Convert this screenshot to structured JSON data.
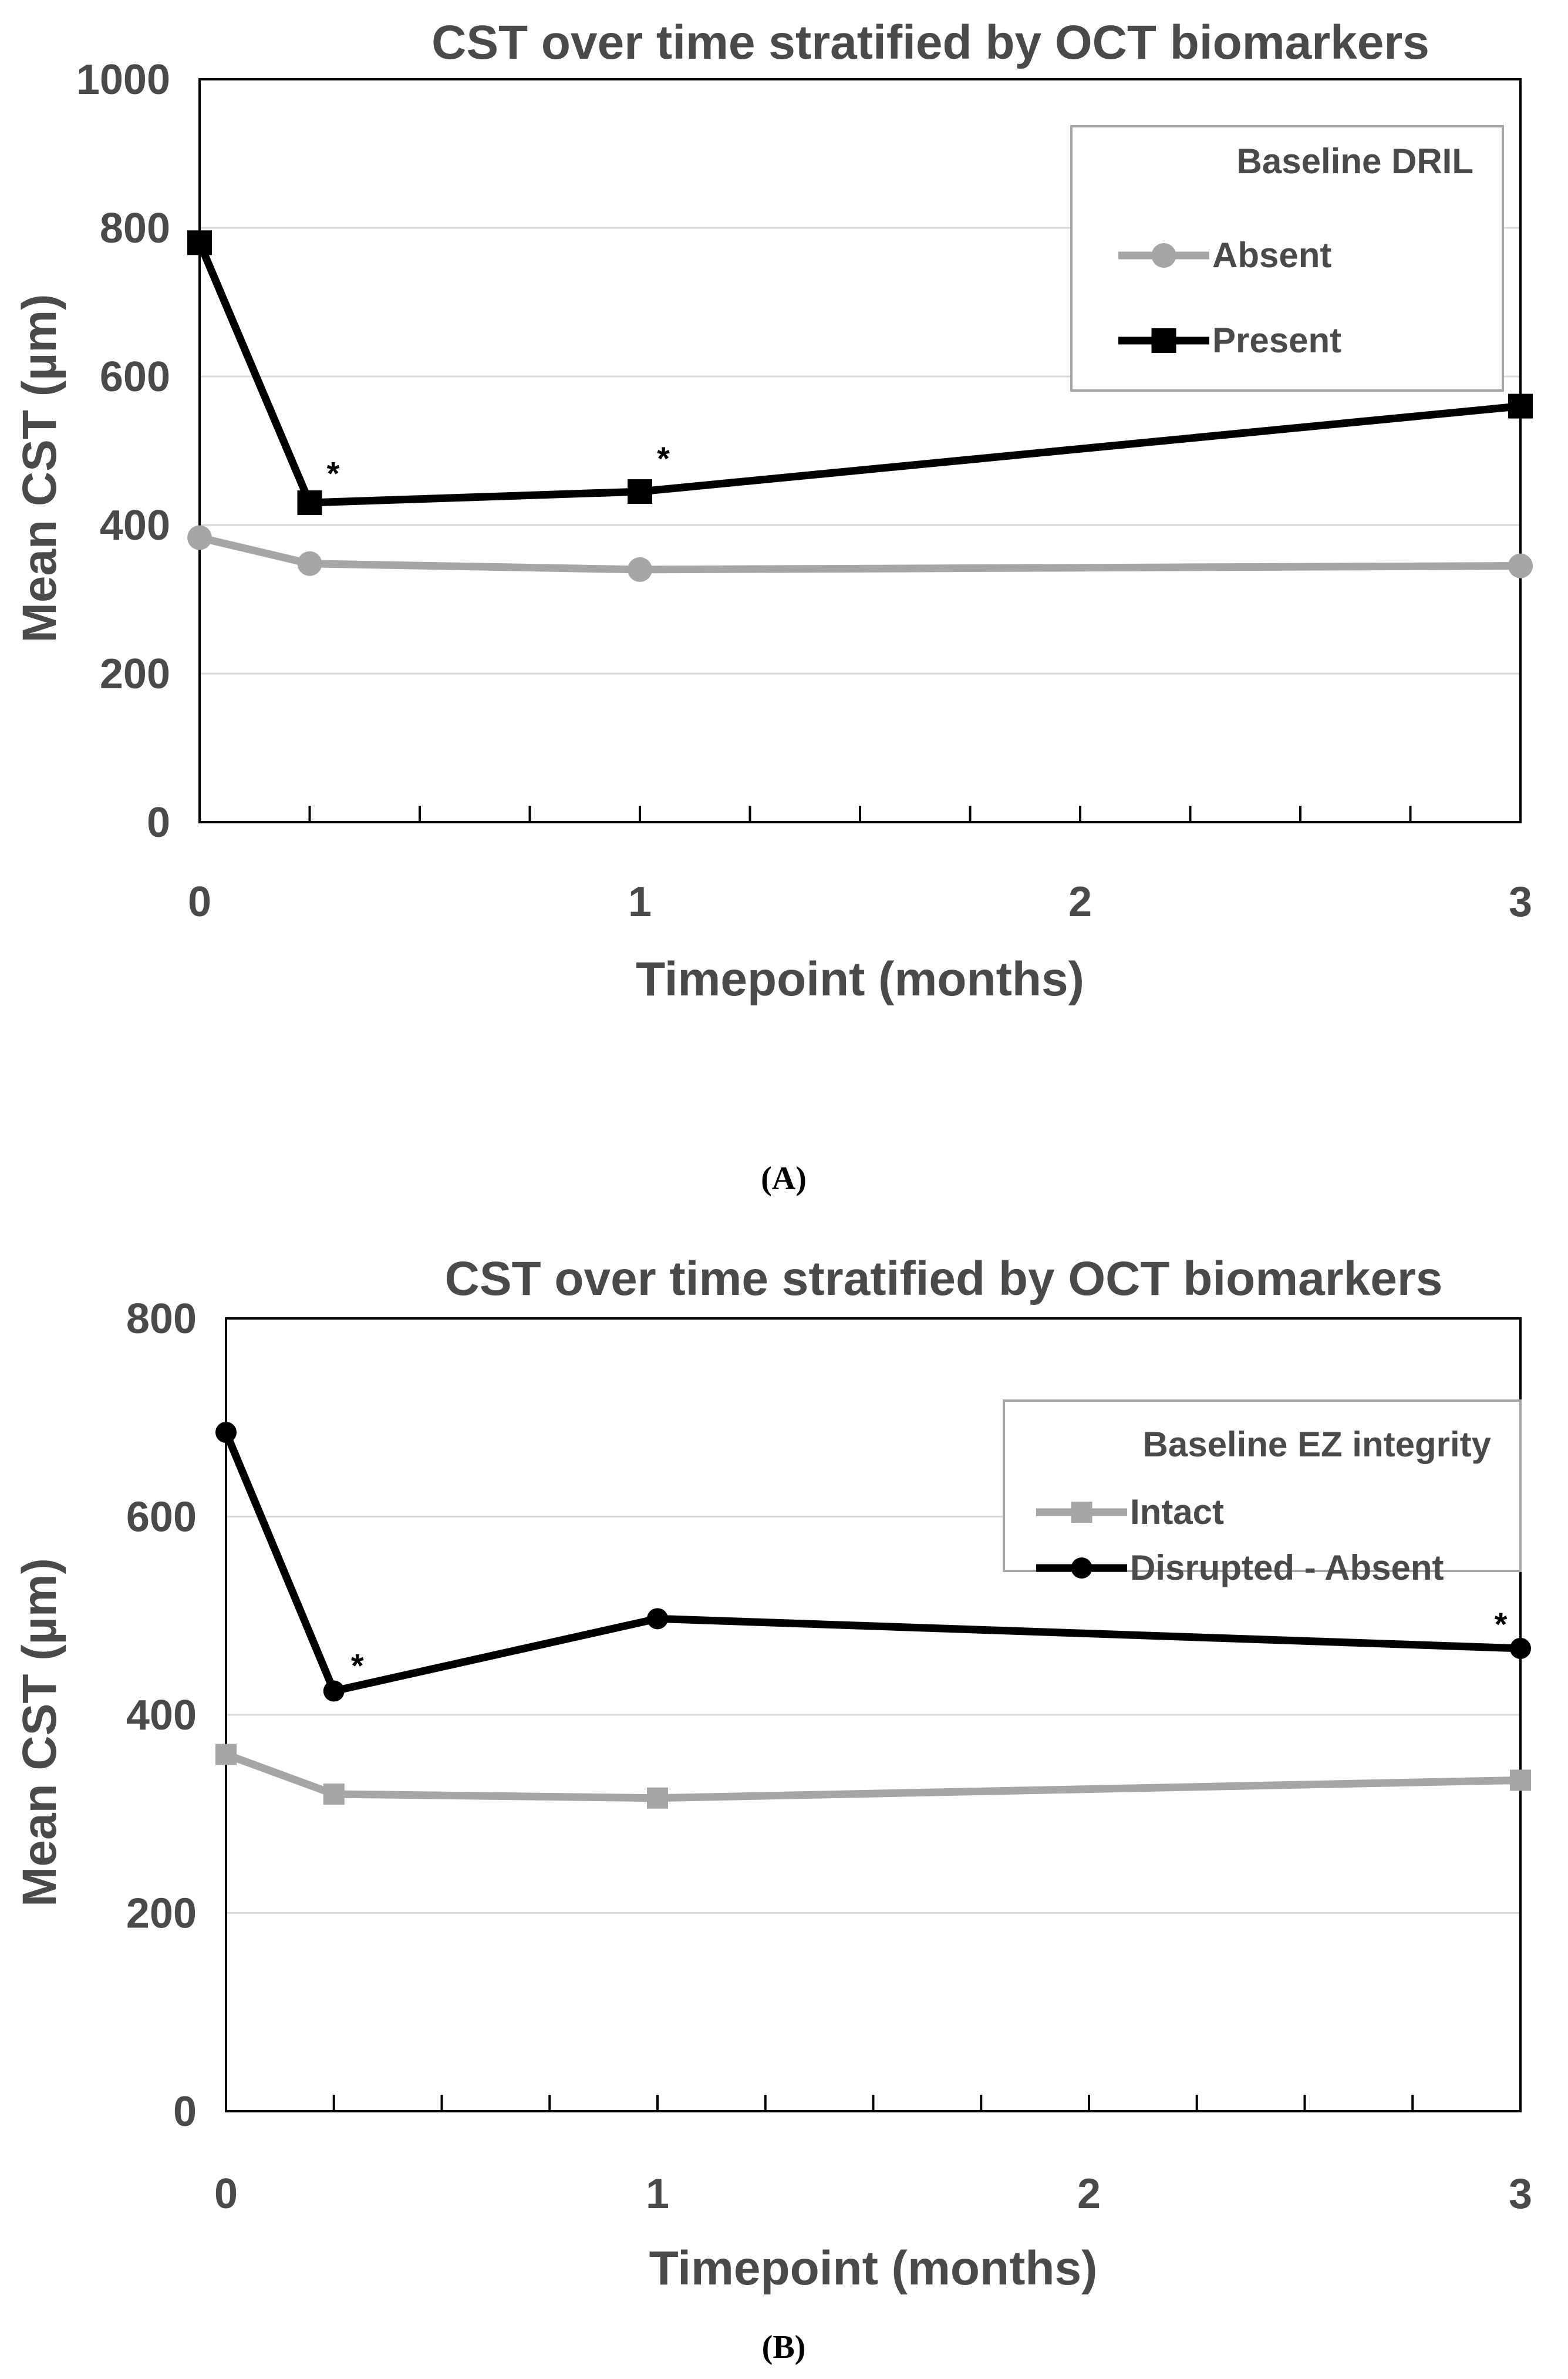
{
  "chart_data": [
    {
      "type": "line",
      "panel_label": "(A)",
      "title": "CST over time stratified by OCT biomarkers",
      "xlabel": "Timepoint (months)",
      "ylabel": "Mean CST (µm)",
      "xlim": [
        0,
        3
      ],
      "ylim": [
        0,
        1000
      ],
      "xticks": [
        0,
        1,
        2,
        3
      ],
      "yticks": [
        0,
        200,
        400,
        600,
        800,
        1000
      ],
      "grid": true,
      "legend": {
        "title": "Baseline DRIL",
        "position": "top-right",
        "boxed": true
      },
      "series": [
        {
          "name": "Absent",
          "color": "#a6a6a6",
          "marker": "circle",
          "x": [
            0,
            0.25,
            1,
            3
          ],
          "y": [
            383,
            348,
            340,
            345
          ]
        },
        {
          "name": "Present",
          "color": "#000000",
          "marker": "square",
          "x": [
            0,
            0.25,
            1,
            3
          ],
          "y": [
            780,
            430,
            445,
            560
          ]
        }
      ],
      "annotations": [
        {
          "text": "*",
          "x": 0.25,
          "y": 470
        },
        {
          "text": "*",
          "x": 1,
          "y": 490
        }
      ]
    },
    {
      "type": "line",
      "panel_label": "(B)",
      "title": "CST over time stratified by OCT biomarkers",
      "xlabel": "Timepoint (months)",
      "ylabel": "Mean CST (µm)",
      "xlim": [
        0,
        3
      ],
      "ylim": [
        0,
        800
      ],
      "xticks": [
        0,
        1,
        2,
        3
      ],
      "yticks": [
        0,
        200,
        400,
        600,
        800
      ],
      "grid": true,
      "legend": {
        "title": "Baseline EZ integrity",
        "position": "top-right",
        "boxed": true
      },
      "series": [
        {
          "name": "Intact",
          "color": "#a6a6a6",
          "marker": "square",
          "x": [
            0,
            0.25,
            1,
            3
          ],
          "y": [
            360,
            320,
            316,
            334
          ]
        },
        {
          "name": "Disrupted - Absent",
          "color": "#000000",
          "marker": "circle",
          "x": [
            0,
            0.25,
            1,
            3
          ],
          "y": [
            685,
            424,
            497,
            467
          ]
        }
      ],
      "annotations": [
        {
          "text": "*",
          "x": 0.25,
          "y": 450
        },
        {
          "text": "*",
          "x": 2.9,
          "y": 492
        }
      ]
    }
  ]
}
